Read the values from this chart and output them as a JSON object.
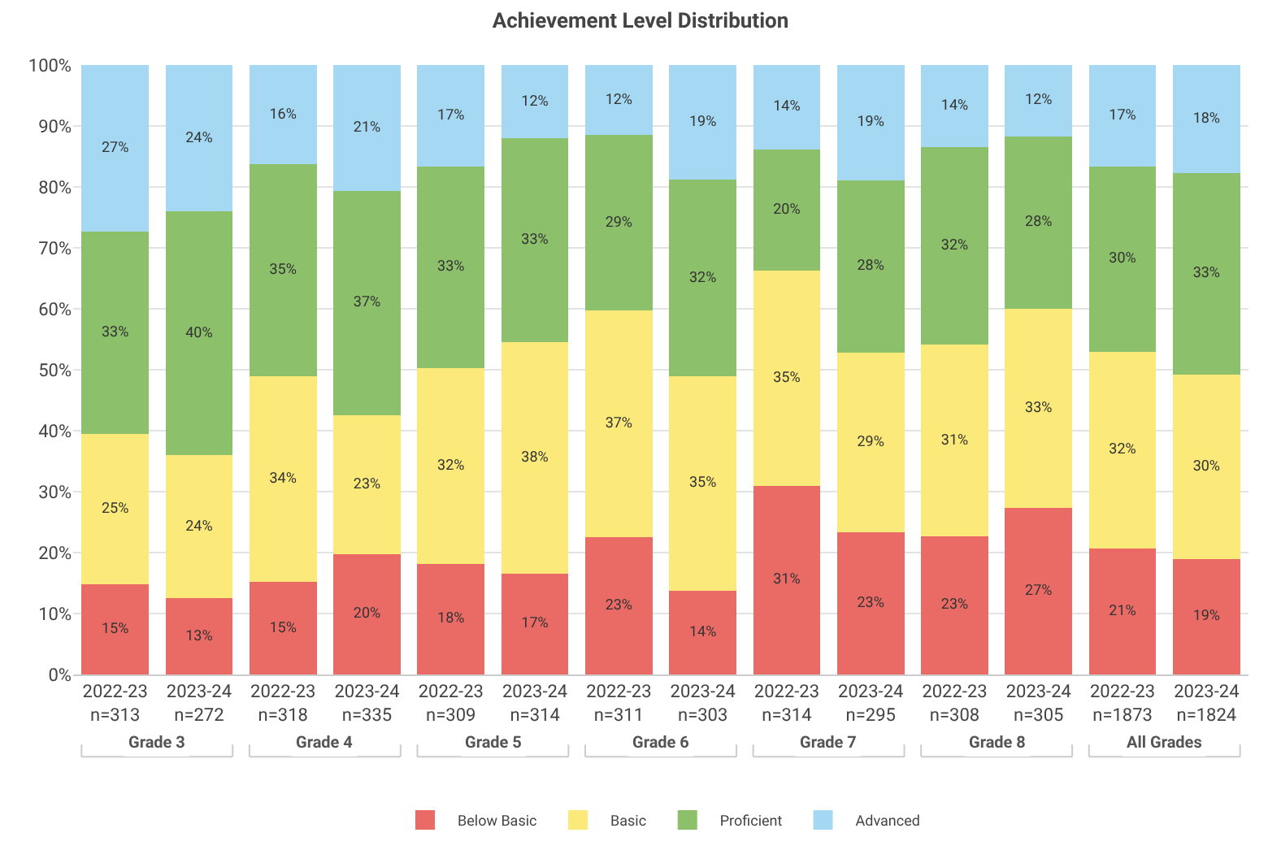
{
  "chart_data": {
    "type": "bar",
    "title": "Achievement Level Distribution",
    "stacked": true,
    "grid": "y",
    "legend": "bottom",
    "categories": [
      "2022-23\nn=313",
      "2023-24\nn=272",
      "2022-23\nn=318",
      "2023-24\nn=335",
      "2022-23\nn=309",
      "2023-24\nn=314",
      "2022-23\nn=311",
      "2023-24\nn=303",
      "2022-23\nn=314",
      "2023-24\nn=295",
      "2022-23\nn=308",
      "2023-24\nn=305",
      "2022-23\nn=1873",
      "2023-24\nn=1824"
    ],
    "annotations": [
      "Grade 3",
      "Grade 4",
      "Grade 5",
      "Grade 6",
      "Grade 7",
      "Grade 8",
      "All Grades"
    ],
    "ylim": [
      0,
      100
    ],
    "yticks": [
      {
        "value": 0,
        "label": "0%"
      },
      {
        "value": 10,
        "label": "10%"
      },
      {
        "value": 20,
        "label": "20%"
      },
      {
        "value": 30,
        "label": "30%"
      },
      {
        "value": 40,
        "label": "40%"
      },
      {
        "value": 50,
        "label": "50%"
      },
      {
        "value": 60,
        "label": "60%"
      },
      {
        "value": 70,
        "label": "70%"
      },
      {
        "value": 80,
        "label": "80%"
      },
      {
        "value": 90,
        "label": "90%"
      },
      {
        "value": 100,
        "label": "100%"
      }
    ],
    "series": [
      {
        "name": "Below Basic",
        "color": "#ea6b66",
        "values": [
          14.8,
          12.5,
          15.2,
          19.8,
          18.2,
          16.6,
          22.6,
          13.8,
          31,
          23.4,
          22.7,
          27.3,
          20.7,
          19
        ],
        "value_labels": [
          "15%",
          "13%",
          "15%",
          "20%",
          "18%",
          "17%",
          "23%",
          "14%",
          "31%",
          "23%",
          "23%",
          "27%",
          "21%",
          "19%"
        ]
      },
      {
        "name": "Basic",
        "color": "#fbe97a",
        "values": [
          24.7,
          23.5,
          33.8,
          22.8,
          32.1,
          38,
          37.1,
          35.1,
          35.3,
          29.4,
          31.4,
          32.7,
          32.3,
          30.2
        ],
        "value_labels": [
          "25%",
          "24%",
          "34%",
          "23%",
          "32%",
          "38%",
          "37%",
          "35%",
          "35%",
          "29%",
          "31%",
          "33%",
          "32%",
          "30%"
        ]
      },
      {
        "name": "Proficient",
        "color": "#8cc06a",
        "values": [
          33.2,
          40,
          34.7,
          36.8,
          33.1,
          33.4,
          28.8,
          32.3,
          19.9,
          28.3,
          32.4,
          28.3,
          30.4,
          33.1
        ],
        "value_labels": [
          "33%",
          "40%",
          "35%",
          "37%",
          "33%",
          "33%",
          "29%",
          "32%",
          "20%",
          "28%",
          "32%",
          "28%",
          "30%",
          "33%"
        ]
      },
      {
        "name": "Advanced",
        "color": "#a5d8f3",
        "values": [
          27.3,
          24,
          16.3,
          20.6,
          16.6,
          12,
          11.5,
          18.8,
          13.8,
          18.9,
          13.5,
          11.7,
          16.6,
          17.7
        ],
        "value_labels": [
          "27%",
          "24%",
          "16%",
          "21%",
          "17%",
          "12%",
          "12%",
          "19%",
          "14%",
          "19%",
          "14%",
          "12%",
          "17%",
          "18%"
        ]
      }
    ]
  }
}
